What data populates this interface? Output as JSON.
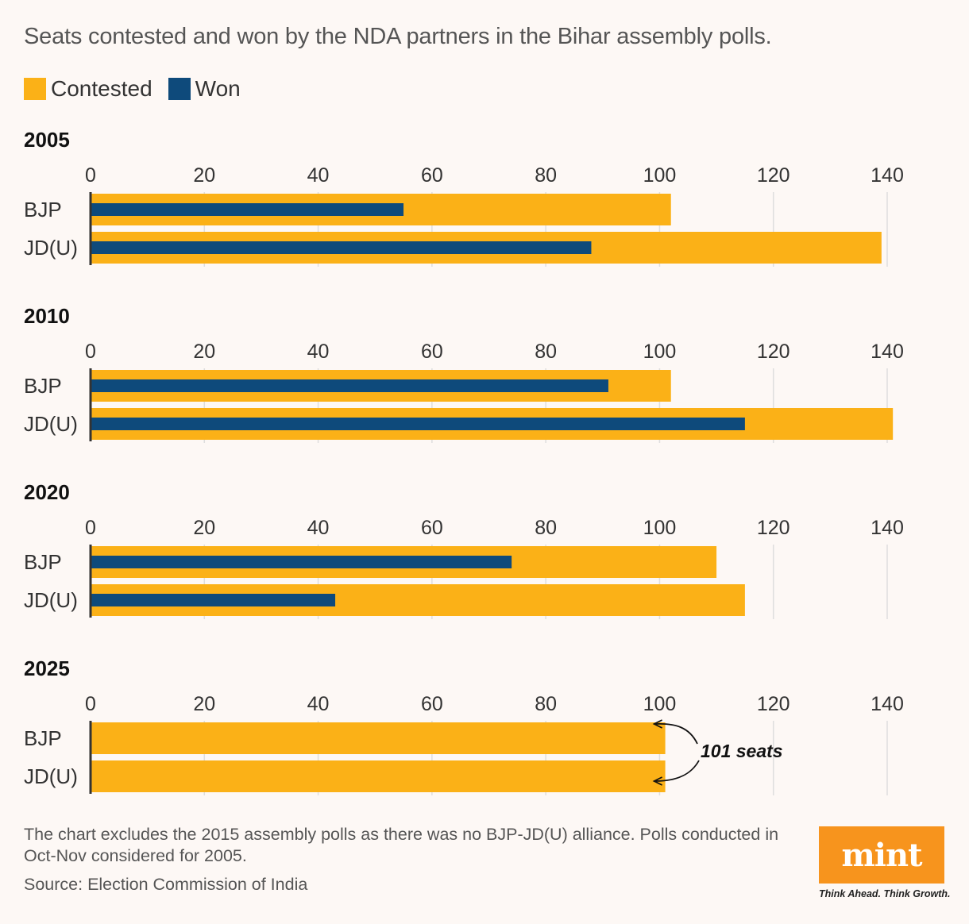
{
  "title": "Seats contested and won by the NDA partners in the Bihar assembly polls.",
  "legend": [
    {
      "label": "Contested",
      "color": "#fbb117"
    },
    {
      "label": "Won",
      "color": "#0e4a7b"
    }
  ],
  "chart_data": {
    "type": "bar",
    "orientation": "horizontal",
    "title": "Seats contested and won by the NDA partners in the Bihar assembly polls.",
    "xlim": [
      0,
      140
    ],
    "ticks": [
      "0",
      "20",
      "40",
      "60",
      "80",
      "100",
      "120",
      "140"
    ],
    "tick_values": [
      0,
      20,
      40,
      60,
      80,
      100,
      120,
      140
    ],
    "grid": true,
    "legend_placement": "top-left",
    "colors": {
      "contested": "#fbb117",
      "won": "#0e4a7b",
      "grid": "#dedede",
      "axis": "#333333"
    },
    "panels": [
      {
        "year": "2005",
        "categories": [
          "BJP",
          "JD(U)"
        ],
        "series": [
          {
            "name": "Contested",
            "values": [
              102,
              139
            ]
          },
          {
            "name": "Won",
            "values": [
              55,
              88
            ]
          }
        ]
      },
      {
        "year": "2010",
        "categories": [
          "BJP",
          "JD(U)"
        ],
        "series": [
          {
            "name": "Contested",
            "values": [
              102,
              141
            ]
          },
          {
            "name": "Won",
            "values": [
              91,
              115
            ]
          }
        ]
      },
      {
        "year": "2020",
        "categories": [
          "BJP",
          "JD(U)"
        ],
        "series": [
          {
            "name": "Contested",
            "values": [
              110,
              115
            ]
          },
          {
            "name": "Won",
            "values": [
              74,
              43
            ]
          }
        ]
      },
      {
        "year": "2025",
        "categories": [
          "BJP",
          "JD(U)"
        ],
        "series": [
          {
            "name": "Contested",
            "values": [
              101,
              101
            ]
          },
          {
            "name": "Won",
            "values": [
              null,
              null
            ]
          }
        ]
      }
    ],
    "annotation": {
      "text": "101 seats",
      "panel": "2025"
    }
  },
  "footnote": "The chart excludes the 2015 assembly polls as there was no BJP-JD(U) alliance. Polls conducted in Oct-Nov considered for 2005.",
  "source": "Source: Election Commission of India",
  "logo": {
    "text": "mint",
    "tagline": "Think Ahead. Think Growth.",
    "color": "#f7941d"
  }
}
